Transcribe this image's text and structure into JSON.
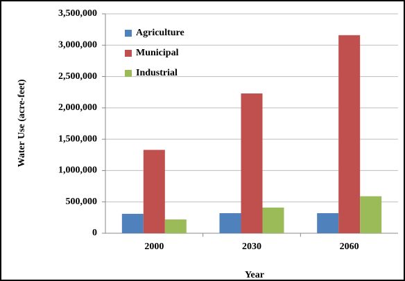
{
  "chart_data": {
    "type": "bar",
    "x_label": "Year",
    "y_label": "Water Use (acre-feet)",
    "categories": [
      "2000",
      "2030",
      "2060"
    ],
    "series": [
      {
        "name": "Agriculture",
        "color": "#4f81bd",
        "values": [
          310000,
          320000,
          320000
        ]
      },
      {
        "name": "Municipal",
        "color": "#c0504d",
        "values": [
          1330000,
          2230000,
          3160000
        ]
      },
      {
        "name": "Industrial",
        "color": "#9bbb59",
        "values": [
          220000,
          410000,
          590000
        ]
      }
    ],
    "ylim": [
      0,
      3500000
    ],
    "yticks": [
      0,
      {
        "value": 500000,
        "label": "500,000"
      },
      {
        "value": 1000000,
        "label": "1,000,000"
      },
      {
        "value": 1500000,
        "label": "1,500,000"
      },
      {
        "value": 2000000,
        "label": "2,000,000"
      },
      {
        "value": 2500000,
        "label": "2,500,000"
      },
      {
        "value": 3000000,
        "label": "3,000,000"
      },
      {
        "value": 3500000,
        "label": "3,500,000"
      }
    ],
    "grid": true,
    "legend": "upper left"
  }
}
